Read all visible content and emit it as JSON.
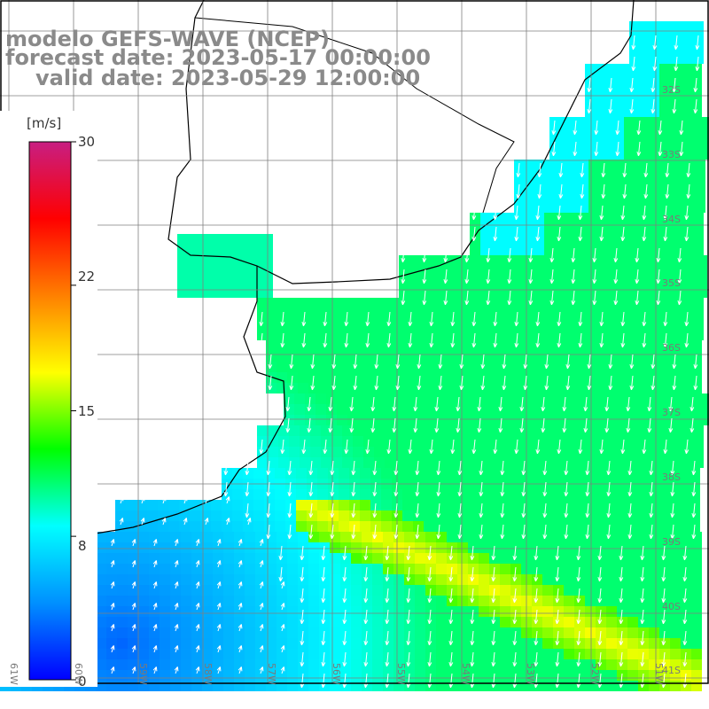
{
  "title": {
    "model": "modelo GEFS-WAVE (NCEP)",
    "forecast": "forecast date: 2023-05-17 00:00:00",
    "valid": "valid date: 2023-05-29 12:00:00"
  },
  "colorbar": {
    "unit": "[m/s]",
    "ticks": [
      "30",
      "22",
      "15",
      "8",
      "0"
    ],
    "tick_values": [
      30,
      22,
      15,
      8,
      0
    ],
    "range": [
      0,
      30
    ],
    "stops": [
      "#0000ff",
      "#0090ff",
      "#00ffff",
      "#00ff00",
      "#ffff00",
      "#ff8000",
      "#ff0000",
      "#c81e82"
    ]
  },
  "lat_labels": [
    "32S",
    "33S",
    "34S",
    "35S",
    "36S",
    "37S",
    "38S",
    "39S",
    "40S",
    "41S"
  ],
  "lon_labels": [
    "61W",
    "60W",
    "59W",
    "58W",
    "57W",
    "56W",
    "55W",
    "54W",
    "53W",
    "52W",
    "51W"
  ],
  "chart_data": {
    "type": "heatmap",
    "variable": "wind speed with direction arrows",
    "unit": "m/s",
    "lon_range": [
      -62,
      -50.5
    ],
    "lat_range": [
      -41.8,
      -31
    ],
    "speed_zones": [
      {
        "region": "open ocean north-east",
        "speed": 12
      },
      {
        "region": "south-west coastal",
        "speed": 3
      },
      {
        "region": "south-east band",
        "speed": 15
      },
      {
        "region": "north-east near coast",
        "speed": 8
      }
    ],
    "prevailing_direction": "southward"
  }
}
